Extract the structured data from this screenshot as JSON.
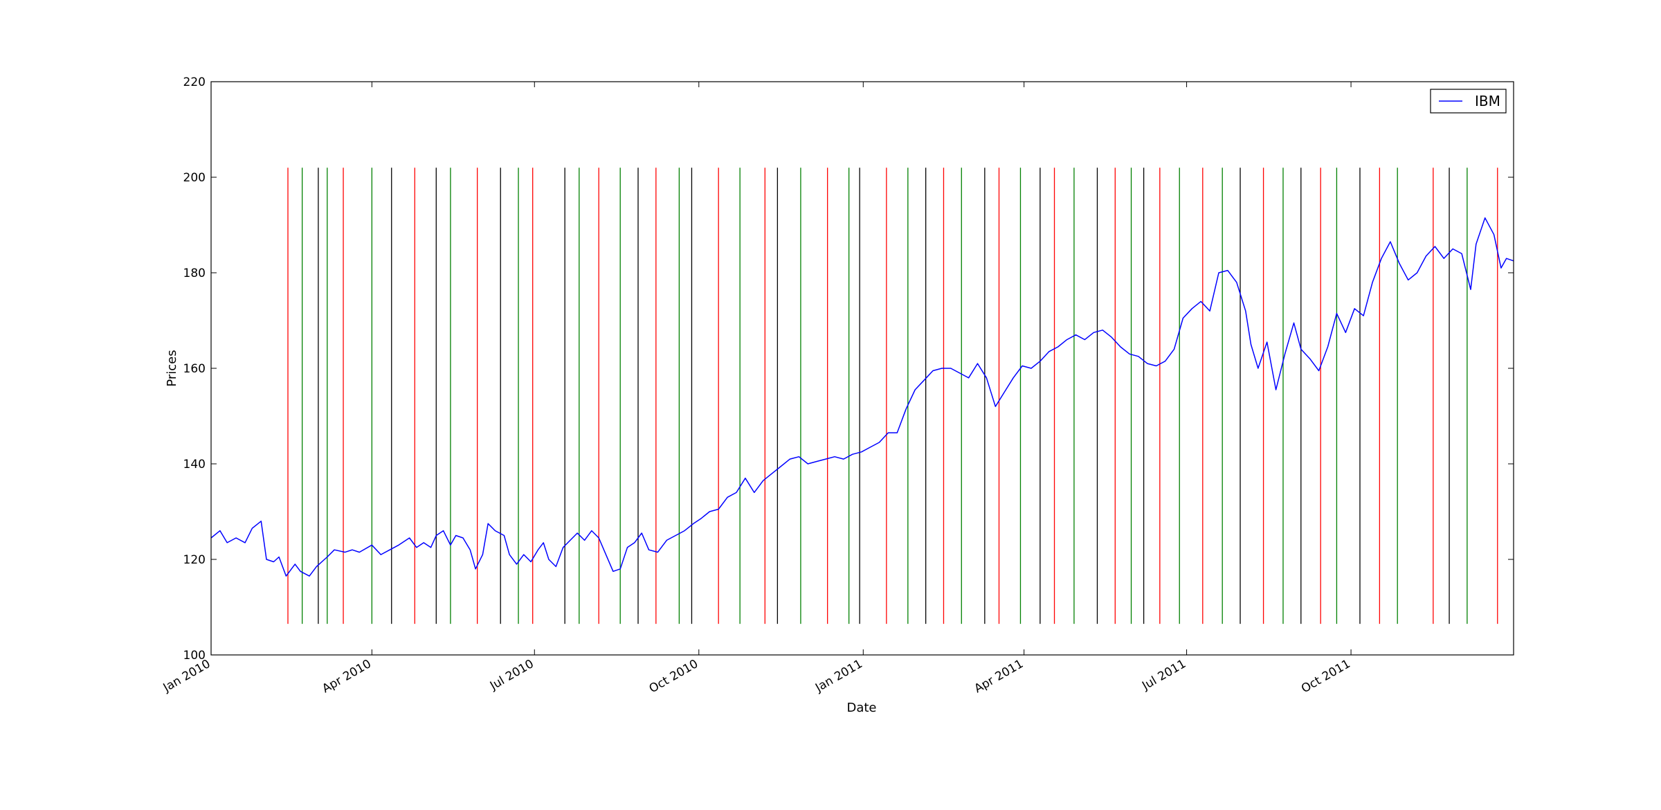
{
  "chart_data": {
    "type": "line",
    "title": "",
    "xlabel": "Date",
    "ylabel": "Prices",
    "x_axis": {
      "range": [
        "2010-01-01",
        "2011-12-31"
      ],
      "ticks": [
        {
          "date": "2010-01-01",
          "label": "Jan 2010"
        },
        {
          "date": "2010-04-01",
          "label": "Apr 2010"
        },
        {
          "date": "2010-07-01",
          "label": "Jul 2010"
        },
        {
          "date": "2010-10-01",
          "label": "Oct 2010"
        },
        {
          "date": "2011-01-01",
          "label": "Jan 2011"
        },
        {
          "date": "2011-04-01",
          "label": "Apr 2011"
        },
        {
          "date": "2011-07-01",
          "label": "Jul 2011"
        },
        {
          "date": "2011-10-01",
          "label": "Oct 2011"
        }
      ]
    },
    "y_axis": {
      "range": [
        100,
        220
      ],
      "ticks": [
        {
          "value": 100,
          "label": "100"
        },
        {
          "value": 120,
          "label": "120"
        },
        {
          "value": 140,
          "label": "140"
        },
        {
          "value": 160,
          "label": "160"
        },
        {
          "value": 180,
          "label": "180"
        },
        {
          "value": 200,
          "label": "200"
        },
        {
          "value": 220,
          "label": "220"
        }
      ]
    },
    "grid": false,
    "legend": {
      "position": "top-right",
      "entries": [
        {
          "name": "IBM",
          "color": "#0000ff"
        }
      ]
    },
    "series": [
      {
        "name": "IBM",
        "color": "#0000ff",
        "points": [
          [
            "2010-01-01",
            124.5
          ],
          [
            "2010-01-06",
            126.0
          ],
          [
            "2010-01-10",
            123.5
          ],
          [
            "2010-01-15",
            124.5
          ],
          [
            "2010-01-20",
            123.5
          ],
          [
            "2010-01-24",
            126.5
          ],
          [
            "2010-01-29",
            128.0
          ],
          [
            "2010-02-01",
            120.0
          ],
          [
            "2010-02-05",
            119.5
          ],
          [
            "2010-02-08",
            120.5
          ],
          [
            "2010-02-12",
            116.5
          ],
          [
            "2010-02-17",
            119.0
          ],
          [
            "2010-02-20",
            117.5
          ],
          [
            "2010-02-25",
            116.5
          ],
          [
            "2010-03-01",
            118.5
          ],
          [
            "2010-03-07",
            120.5
          ],
          [
            "2010-03-11",
            122.0
          ],
          [
            "2010-03-17",
            121.5
          ],
          [
            "2010-03-21",
            122.0
          ],
          [
            "2010-03-25",
            121.5
          ],
          [
            "2010-04-01",
            123.0
          ],
          [
            "2010-04-06",
            121.0
          ],
          [
            "2010-04-11",
            122.0
          ],
          [
            "2010-04-16",
            123.0
          ],
          [
            "2010-04-22",
            124.5
          ],
          [
            "2010-04-26",
            122.5
          ],
          [
            "2010-04-30",
            123.5
          ],
          [
            "2010-05-04",
            122.5
          ],
          [
            "2010-05-07",
            125.0
          ],
          [
            "2010-05-11",
            126.0
          ],
          [
            "2010-05-15",
            123.0
          ],
          [
            "2010-05-18",
            125.0
          ],
          [
            "2010-05-22",
            124.5
          ],
          [
            "2010-05-26",
            122.0
          ],
          [
            "2010-05-29",
            118.0
          ],
          [
            "2010-06-02",
            121.0
          ],
          [
            "2010-06-05",
            127.5
          ],
          [
            "2010-06-09",
            126.0
          ],
          [
            "2010-06-14",
            125.0
          ],
          [
            "2010-06-17",
            121.0
          ],
          [
            "2010-06-21",
            119.0
          ],
          [
            "2010-06-25",
            121.0
          ],
          [
            "2010-06-29",
            119.5
          ],
          [
            "2010-07-03",
            122.0
          ],
          [
            "2010-07-06",
            123.5
          ],
          [
            "2010-07-09",
            120.0
          ],
          [
            "2010-07-13",
            118.5
          ],
          [
            "2010-07-17",
            122.5
          ],
          [
            "2010-07-21",
            124.0
          ],
          [
            "2010-07-25",
            125.5
          ],
          [
            "2010-07-29",
            124.0
          ],
          [
            "2010-08-02",
            126.0
          ],
          [
            "2010-08-06",
            124.5
          ],
          [
            "2010-08-10",
            121.0
          ],
          [
            "2010-08-14",
            117.5
          ],
          [
            "2010-08-18",
            118.0
          ],
          [
            "2010-08-22",
            122.5
          ],
          [
            "2010-08-26",
            123.5
          ],
          [
            "2010-08-30",
            125.5
          ],
          [
            "2010-09-03",
            122.0
          ],
          [
            "2010-09-08",
            121.5
          ],
          [
            "2010-09-13",
            124.0
          ],
          [
            "2010-09-18",
            125.0
          ],
          [
            "2010-09-23",
            126.0
          ],
          [
            "2010-09-28",
            127.5
          ],
          [
            "2010-10-02",
            128.5
          ],
          [
            "2010-10-07",
            130.0
          ],
          [
            "2010-10-12",
            130.5
          ],
          [
            "2010-10-17",
            133.0
          ],
          [
            "2010-10-22",
            134.0
          ],
          [
            "2010-10-27",
            137.0
          ],
          [
            "2010-11-01",
            134.0
          ],
          [
            "2010-11-06",
            136.5
          ],
          [
            "2010-11-11",
            138.0
          ],
          [
            "2010-11-16",
            139.5
          ],
          [
            "2010-11-21",
            141.0
          ],
          [
            "2010-11-26",
            141.5
          ],
          [
            "2010-12-01",
            140.0
          ],
          [
            "2010-12-06",
            140.5
          ],
          [
            "2010-12-11",
            141.0
          ],
          [
            "2010-12-16",
            141.5
          ],
          [
            "2010-12-21",
            141.0
          ],
          [
            "2010-12-26",
            142.0
          ],
          [
            "2010-12-31",
            142.5
          ],
          [
            "2011-01-05",
            143.5
          ],
          [
            "2011-01-10",
            144.5
          ],
          [
            "2011-01-15",
            146.5
          ],
          [
            "2011-01-20",
            146.5
          ],
          [
            "2011-01-25",
            151.5
          ],
          [
            "2011-01-30",
            155.5
          ],
          [
            "2011-02-04",
            157.5
          ],
          [
            "2011-02-09",
            159.5
          ],
          [
            "2011-02-14",
            160.0
          ],
          [
            "2011-02-19",
            160.0
          ],
          [
            "2011-02-24",
            159.0
          ],
          [
            "2011-03-01",
            158.0
          ],
          [
            "2011-03-06",
            161.0
          ],
          [
            "2011-03-11",
            158.0
          ],
          [
            "2011-03-16",
            152.0
          ],
          [
            "2011-03-21",
            155.0
          ],
          [
            "2011-03-26",
            158.0
          ],
          [
            "2011-03-31",
            160.5
          ],
          [
            "2011-04-05",
            160.0
          ],
          [
            "2011-04-10",
            161.5
          ],
          [
            "2011-04-15",
            163.5
          ],
          [
            "2011-04-20",
            164.5
          ],
          [
            "2011-04-25",
            166.0
          ],
          [
            "2011-04-30",
            167.0
          ],
          [
            "2011-05-05",
            166.0
          ],
          [
            "2011-05-10",
            167.5
          ],
          [
            "2011-05-15",
            168.0
          ],
          [
            "2011-05-20",
            166.5
          ],
          [
            "2011-05-25",
            164.5
          ],
          [
            "2011-05-30",
            163.0
          ],
          [
            "2011-06-04",
            162.5
          ],
          [
            "2011-06-09",
            161.0
          ],
          [
            "2011-06-14",
            160.5
          ],
          [
            "2011-06-19",
            161.5
          ],
          [
            "2011-06-24",
            164.0
          ],
          [
            "2011-06-29",
            170.5
          ],
          [
            "2011-07-04",
            172.5
          ],
          [
            "2011-07-09",
            174.0
          ],
          [
            "2011-07-14",
            172.0
          ],
          [
            "2011-07-19",
            180.0
          ],
          [
            "2011-07-24",
            180.5
          ],
          [
            "2011-07-29",
            178.0
          ],
          [
            "2011-08-03",
            172.0
          ],
          [
            "2011-08-06",
            165.0
          ],
          [
            "2011-08-10",
            160.0
          ],
          [
            "2011-08-15",
            165.5
          ],
          [
            "2011-08-20",
            155.5
          ],
          [
            "2011-08-25",
            163.0
          ],
          [
            "2011-08-30",
            169.5
          ],
          [
            "2011-09-03",
            164.0
          ],
          [
            "2011-09-08",
            162.0
          ],
          [
            "2011-09-13",
            159.5
          ],
          [
            "2011-09-18",
            164.5
          ],
          [
            "2011-09-23",
            171.5
          ],
          [
            "2011-09-28",
            167.5
          ],
          [
            "2011-10-03",
            172.5
          ],
          [
            "2011-10-08",
            171.0
          ],
          [
            "2011-10-13",
            178.0
          ],
          [
            "2011-10-18",
            183.0
          ],
          [
            "2011-10-23",
            186.5
          ],
          [
            "2011-10-28",
            182.0
          ],
          [
            "2011-11-02",
            178.5
          ],
          [
            "2011-11-07",
            180.0
          ],
          [
            "2011-11-12",
            183.5
          ],
          [
            "2011-11-17",
            185.5
          ],
          [
            "2011-11-22",
            183.0
          ],
          [
            "2011-11-27",
            185.0
          ],
          [
            "2011-12-02",
            184.0
          ],
          [
            "2011-12-07",
            176.5
          ],
          [
            "2011-12-10",
            186.0
          ],
          [
            "2011-12-15",
            191.5
          ],
          [
            "2011-12-20",
            188.0
          ],
          [
            "2011-12-24",
            181.0
          ],
          [
            "2011-12-27",
            183.0
          ],
          [
            "2011-12-31",
            182.5
          ]
        ]
      }
    ],
    "signal_lines": {
      "y_range": [
        106.5,
        202
      ],
      "buy": {
        "color": "#008000",
        "dates": [
          "2010-02-21",
          "2010-03-07",
          "2010-04-01",
          "2010-05-15",
          "2010-06-22",
          "2010-07-26",
          "2010-08-18",
          "2010-09-20",
          "2010-10-24",
          "2010-11-27",
          "2010-12-24",
          "2011-01-26",
          "2011-02-25",
          "2011-03-30",
          "2011-04-29",
          "2011-05-31",
          "2011-06-27",
          "2011-07-21",
          "2011-08-24",
          "2011-09-23",
          "2011-10-27",
          "2011-12-05"
        ]
      },
      "sell": {
        "color": "#ff0000",
        "dates": [
          "2010-02-13",
          "2010-03-16",
          "2010-04-25",
          "2010-05-30",
          "2010-06-30",
          "2010-08-06",
          "2010-09-07",
          "2010-10-12",
          "2010-11-07",
          "2010-12-12",
          "2011-01-14",
          "2011-02-15",
          "2011-03-18",
          "2011-04-18",
          "2011-05-22",
          "2011-06-16",
          "2011-07-10",
          "2011-08-13",
          "2011-09-14",
          "2011-10-17",
          "2011-11-16",
          "2011-12-22"
        ]
      },
      "other": {
        "color": "#000000",
        "dates": [
          "2010-03-02",
          "2010-04-12",
          "2010-05-07",
          "2010-06-12",
          "2010-07-18",
          "2010-08-28",
          "2010-09-27",
          "2010-11-14",
          "2010-12-30",
          "2011-02-05",
          "2011-03-10",
          "2011-04-10",
          "2011-05-12",
          "2011-06-07",
          "2011-07-31",
          "2011-09-03",
          "2011-10-06",
          "2011-11-25"
        ]
      }
    }
  }
}
